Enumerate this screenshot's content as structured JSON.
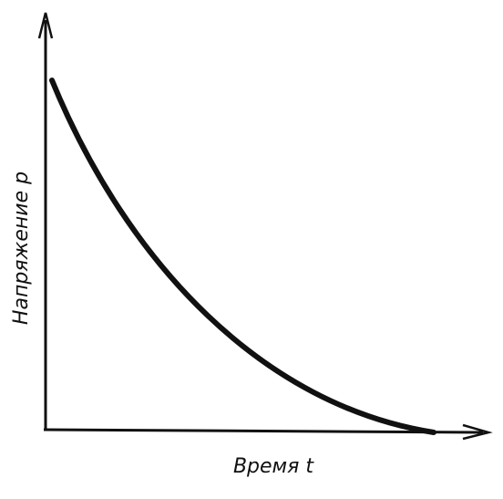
{
  "axes": {
    "y_label": "Напряжение p",
    "x_label": "Время t"
  }
}
